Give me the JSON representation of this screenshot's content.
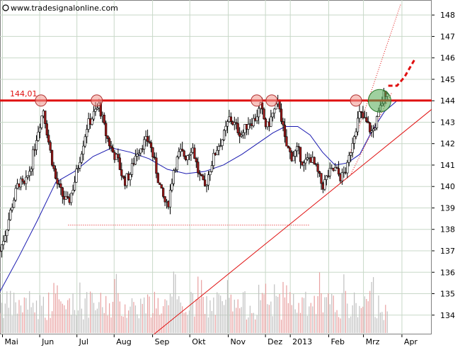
{
  "watermark": "www.tradesignalonline.com",
  "chart_data": {
    "type": "candlestick",
    "title": "",
    "xlabel": "",
    "ylabel": "",
    "ylim": [
      133.1,
      148.7
    ],
    "x_range_days": [
      0,
      348
    ],
    "y_ticks": [
      134,
      135,
      136,
      137,
      138,
      139,
      140,
      141,
      142,
      143,
      144,
      145,
      146,
      147,
      148
    ],
    "x_ticks": [
      {
        "label": "Mai",
        "day": 2
      },
      {
        "label": "Jun",
        "day": 32
      },
      {
        "label": "Jul",
        "day": 62
      },
      {
        "label": "Aug",
        "day": 92
      },
      {
        "label": "Sep",
        "day": 123
      },
      {
        "label": "Okt",
        "day": 153
      },
      {
        "label": "Nov",
        "day": 184
      },
      {
        "label": "Dez",
        "day": 214
      },
      {
        "label": "2013",
        "day": 234
      },
      {
        "label": "Feb",
        "day": 265
      },
      {
        "label": "Mrz",
        "day": 293
      },
      {
        "label": "Apr",
        "day": 324
      }
    ],
    "grid": true,
    "resistance": {
      "value": 144.01,
      "label": "144,01",
      "color": "#e01010"
    },
    "price_path": [
      [
        0,
        137.0
      ],
      [
        5,
        138.0
      ],
      [
        10,
        139.2
      ],
      [
        15,
        140.2
      ],
      [
        20,
        140.0
      ],
      [
        25,
        141.0
      ],
      [
        30,
        142.5
      ],
      [
        35,
        143.6
      ],
      [
        40,
        141.8
      ],
      [
        45,
        140.3
      ],
      [
        50,
        139.6
      ],
      [
        55,
        139.2
      ],
      [
        60,
        140.2
      ],
      [
        65,
        141.5
      ],
      [
        70,
        142.8
      ],
      [
        75,
        143.3
      ],
      [
        80,
        143.8
      ],
      [
        85,
        142.5
      ],
      [
        90,
        141.7
      ],
      [
        95,
        141.2
      ],
      [
        100,
        140.2
      ],
      [
        105,
        140.6
      ],
      [
        110,
        141.6
      ],
      [
        115,
        142.0
      ],
      [
        120,
        142.2
      ],
      [
        125,
        141.0
      ],
      [
        130,
        139.7
      ],
      [
        135,
        139.0
      ],
      [
        140,
        140.8
      ],
      [
        145,
        141.6
      ],
      [
        150,
        141.4
      ],
      [
        155,
        141.9
      ],
      [
        160,
        140.6
      ],
      [
        165,
        139.9
      ],
      [
        170,
        141.0
      ],
      [
        175,
        141.8
      ],
      [
        180,
        142.3
      ],
      [
        185,
        143.2
      ],
      [
        190,
        142.8
      ],
      [
        195,
        142.4
      ],
      [
        200,
        143.0
      ],
      [
        205,
        143.1
      ],
      [
        210,
        143.7
      ],
      [
        215,
        142.7
      ],
      [
        220,
        143.4
      ],
      [
        225,
        143.9
      ],
      [
        230,
        142.0
      ],
      [
        235,
        141.4
      ],
      [
        240,
        141.7
      ],
      [
        245,
        141.0
      ],
      [
        250,
        141.4
      ],
      [
        255,
        140.8
      ],
      [
        260,
        140.0
      ],
      [
        265,
        140.6
      ],
      [
        270,
        140.8
      ],
      [
        275,
        140.4
      ],
      [
        280,
        140.9
      ],
      [
        285,
        142.4
      ],
      [
        290,
        143.4
      ],
      [
        295,
        143.0
      ],
      [
        300,
        142.5
      ],
      [
        305,
        143.3
      ],
      [
        310,
        144.4
      ],
      [
        313,
        144.5
      ]
    ],
    "moving_average": [
      [
        0,
        135.1
      ],
      [
        15,
        136.7
      ],
      [
        30,
        138.4
      ],
      [
        45,
        140.2
      ],
      [
        60,
        140.7
      ],
      [
        75,
        141.4
      ],
      [
        90,
        141.8
      ],
      [
        105,
        141.6
      ],
      [
        120,
        141.3
      ],
      [
        135,
        140.8
      ],
      [
        150,
        140.6
      ],
      [
        165,
        140.7
      ],
      [
        180,
        141.0
      ],
      [
        195,
        141.5
      ],
      [
        210,
        142.1
      ],
      [
        220,
        142.5
      ],
      [
        230,
        142.8
      ],
      [
        240,
        142.8
      ],
      [
        250,
        142.4
      ],
      [
        260,
        141.6
      ],
      [
        270,
        141.0
      ],
      [
        280,
        141.1
      ],
      [
        290,
        141.5
      ],
      [
        300,
        142.6
      ],
      [
        310,
        143.5
      ],
      [
        320,
        144.0
      ]
    ],
    "support_trendline": [
      [
        124,
        133.1
      ],
      [
        348,
        143.6
      ]
    ],
    "support_level": {
      "value": 138.2,
      "from_day": 55,
      "to_day": 250
    },
    "projection_dotted": [
      [
        282,
        141.5
      ],
      [
        323,
        148.5
      ]
    ],
    "projection_lower_dotted": [
      [
        283,
        140.6
      ],
      [
        316,
        144.4
      ]
    ],
    "projection_dashed": [
      [
        313,
        144.7
      ],
      [
        320,
        144.7
      ],
      [
        326,
        145.1
      ],
      [
        334,
        145.9
      ]
    ],
    "touch_markers": [
      {
        "day": 33,
        "value": 144.01
      },
      {
        "day": 78,
        "value": 144.01
      },
      {
        "day": 207,
        "value": 144.01
      },
      {
        "day": 219,
        "value": 144.01
      },
      {
        "day": 287,
        "value": 144.01
      }
    ],
    "breakout_marker": {
      "day": 306,
      "value": 144.0
    },
    "volume_bars_shown": true
  }
}
